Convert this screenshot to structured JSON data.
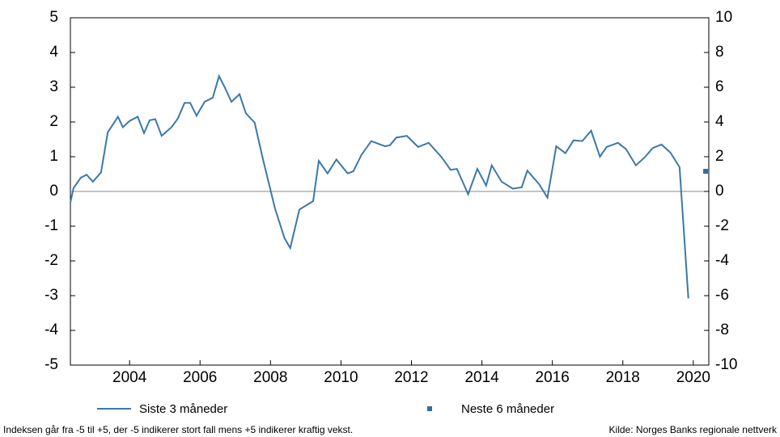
{
  "chart_data": {
    "type": "line",
    "xlim": [
      2002.32,
      2020.44
    ],
    "xticks": [
      2004,
      2006,
      2008,
      2010,
      2012,
      2014,
      2016,
      2018,
      2020
    ],
    "ylim": [
      -5,
      5
    ],
    "yticks": [
      -5,
      -4,
      -3,
      -2,
      -1,
      0,
      1,
      2,
      3,
      4,
      5
    ],
    "y2lim": [
      -10,
      10
    ],
    "y2ticks": [
      -10,
      -8,
      -6,
      -4,
      -2,
      0,
      2,
      4,
      6,
      8,
      10
    ],
    "series": [
      {
        "name": "Siste 3 måneder",
        "color": "#3b78a9",
        "axis": "y",
        "x": [
          2002.32,
          2002.41,
          2002.62,
          2002.78,
          2002.96,
          2003.19,
          2003.38,
          2003.67,
          2003.81,
          2004.0,
          2004.23,
          2004.41,
          2004.57,
          2004.73,
          2004.91,
          2005.19,
          2005.37,
          2005.56,
          2005.72,
          2005.9,
          2006.13,
          2006.36,
          2006.54,
          2006.7,
          2006.89,
          2007.12,
          2007.3,
          2007.55,
          2007.78,
          2008.13,
          2008.4,
          2008.56,
          2008.82,
          2009.21,
          2009.37,
          2009.62,
          2009.87,
          2010.19,
          2010.35,
          2010.58,
          2010.86,
          2011.25,
          2011.39,
          2011.57,
          2011.87,
          2012.19,
          2012.49,
          2012.86,
          2013.11,
          2013.29,
          2013.61,
          2013.87,
          2014.12,
          2014.28,
          2014.56,
          2014.88,
          2015.13,
          2015.29,
          2015.63,
          2015.86,
          2016.11,
          2016.37,
          2016.6,
          2016.85,
          2017.1,
          2017.35,
          2017.54,
          2017.86,
          2018.09,
          2018.37,
          2018.62,
          2018.85,
          2019.1,
          2019.35,
          2019.61,
          2019.86
        ],
        "values": [
          -0.32,
          0.1,
          0.4,
          0.48,
          0.28,
          0.55,
          1.7,
          2.15,
          1.85,
          2.03,
          2.15,
          1.68,
          2.05,
          2.08,
          1.6,
          1.85,
          2.1,
          2.55,
          2.55,
          2.18,
          2.58,
          2.7,
          3.32,
          3.0,
          2.58,
          2.8,
          2.25,
          1.98,
          0.95,
          -0.5,
          -1.35,
          -1.63,
          -0.52,
          -0.28,
          0.88,
          0.52,
          0.92,
          0.52,
          0.58,
          1.05,
          1.45,
          1.3,
          1.33,
          1.55,
          1.6,
          1.28,
          1.4,
          0.98,
          0.62,
          0.65,
          -0.08,
          0.65,
          0.17,
          0.75,
          0.28,
          0.08,
          0.12,
          0.6,
          0.2,
          -0.18,
          1.3,
          1.1,
          1.47,
          1.45,
          1.75,
          1.0,
          1.28,
          1.4,
          1.22,
          0.75,
          0.98,
          1.25,
          1.35,
          1.12,
          0.7,
          -3.08
        ]
      },
      {
        "name": "Neste 6 måneder",
        "color": "#2f6e9f",
        "axis": "y2",
        "x": [
          2020.35
        ],
        "values": [
          1.16
        ]
      }
    ],
    "footnote": "Indeksen går fra -5 til +5, der -5 indikerer stort fall mens +5 indikerer kraftig vekst.",
    "source": "Kilde: Norges Banks regionale nettverk"
  }
}
